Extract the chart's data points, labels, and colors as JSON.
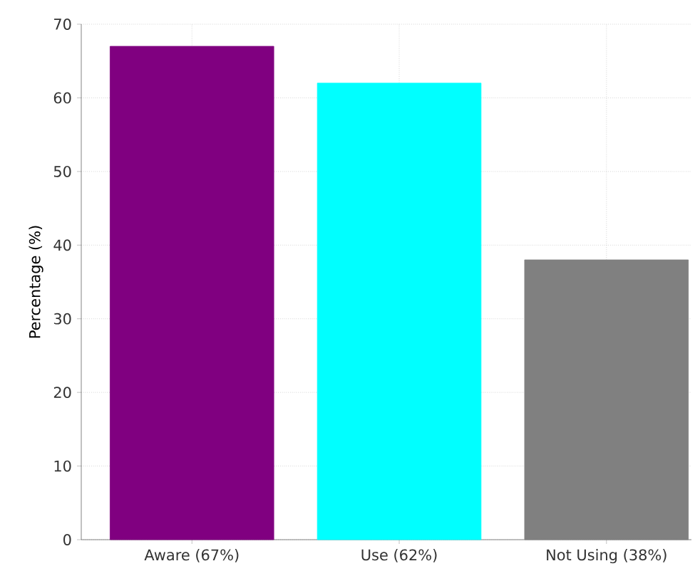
{
  "chart_data": {
    "type": "bar",
    "ylabel": "Percentage (%)",
    "categories": [
      "Aware (67%)",
      "Use (62%)",
      "Not Using (38%)"
    ],
    "values": [
      67,
      62,
      38
    ],
    "colors": [
      "#800080",
      "#00ffff",
      "#808080"
    ],
    "ylim": [
      0,
      70
    ],
    "yticks": [
      0,
      10,
      20,
      30,
      40,
      50,
      60,
      70
    ],
    "grid": true
  }
}
